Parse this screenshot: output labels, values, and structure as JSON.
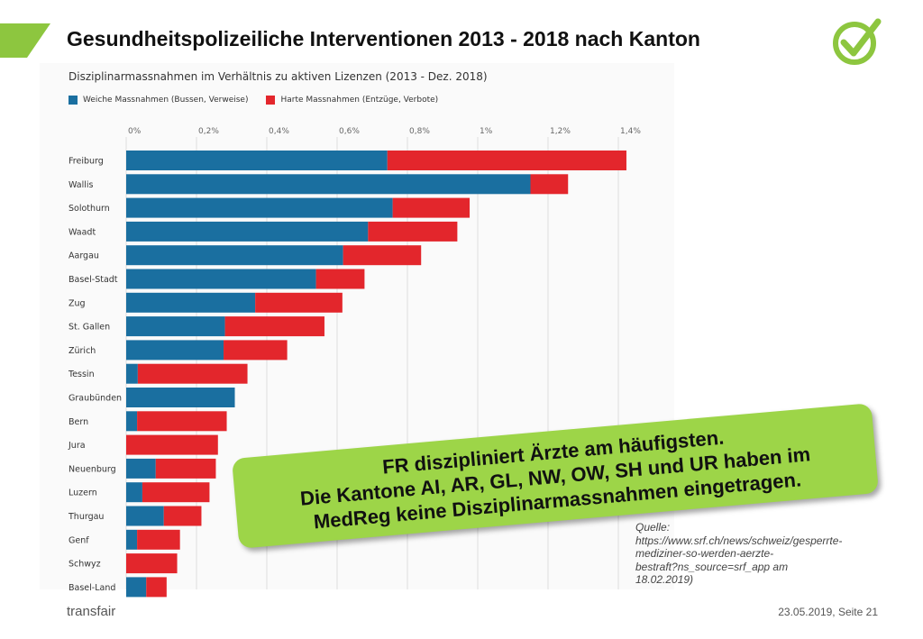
{
  "slide": {
    "title": "Gesundheitspolizeiliche Interventionen 2013 - 2018 nach Kanton",
    "accent_color": "#8dc63f",
    "callout": {
      "line1": "FR diszipliniert Ärzte am häufigsten.",
      "line2": "Die Kantone AI, AR, GL, NW, OW, SH und UR haben im",
      "line3": "MedReg keine Disziplinarmassnahmen eingetragen."
    },
    "source": {
      "label": "Quelle:",
      "line1": "https://www.srf.ch/news/schweiz/gesperrte-",
      "line2": "mediziner-so-werden-aerzte-",
      "line3": "bestraft?ns_source=srf_app am",
      "line4": "18.02.2019)"
    },
    "brand": "transfair",
    "footer": "23.05.2019, Seite 21"
  },
  "chart_data": {
    "type": "bar",
    "orientation": "horizontal",
    "stacked": true,
    "title": "Disziplinarmassnahmen im Verhältnis zu aktiven Lizenzen (2013 - Dez. 2018)",
    "categories": [
      "Freiburg",
      "Wallis",
      "Solothurn",
      "Waadt",
      "Aargau",
      "Basel-Stadt",
      "Zug",
      "St. Gallen",
      "Zürich",
      "Tessin",
      "Graubünden",
      "Bern",
      "Jura",
      "Neuenburg",
      "Luzern",
      "Thurgau",
      "Genf",
      "Schwyz",
      "Basel-Land"
    ],
    "series": [
      {
        "name": "Weiche Massnahmen (Bussen, Verweise)",
        "color": "#1a6fa0",
        "values": [
          0.743,
          1.15,
          0.758,
          0.688,
          0.617,
          0.54,
          0.367,
          0.281,
          0.277,
          0.033,
          0.309,
          0.031,
          0.0,
          0.084,
          0.046,
          0.107,
          0.031,
          0.0,
          0.057
        ]
      },
      {
        "name": "Harte Massnahmen (Entzüge, Verbote)",
        "color": "#e3262c",
        "values": [
          0.68,
          0.107,
          0.219,
          0.254,
          0.222,
          0.138,
          0.248,
          0.283,
          0.181,
          0.312,
          0.0,
          0.255,
          0.261,
          0.171,
          0.191,
          0.107,
          0.122,
          0.145,
          0.058
        ]
      }
    ],
    "x_ticks": [
      "0%",
      "0,2%",
      "0,4%",
      "0,6%",
      "0,8%",
      "1%",
      "1,2%",
      "1,4%"
    ],
    "xlim": [
      0,
      1.4
    ],
    "grid": true,
    "legend_position": "top-left"
  }
}
